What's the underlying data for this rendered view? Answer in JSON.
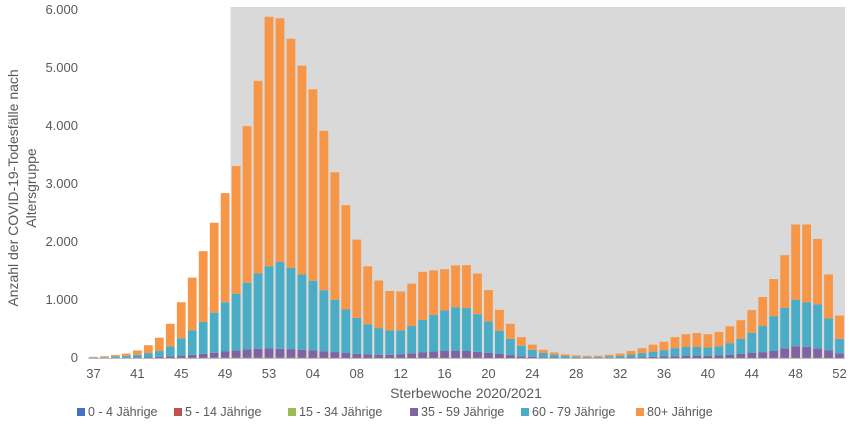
{
  "chart_data": {
    "type": "bar",
    "stacked": true,
    "xlabel": "Sterbewoche 2020/2021",
    "ylabel": "Anzahl der COVID-19-Todesfälle nach Altersgruppe",
    "ylim": [
      0,
      6000
    ],
    "yticks": [
      0,
      1000,
      2000,
      3000,
      4000,
      5000,
      6000
    ],
    "ytick_labels": [
      "0",
      "1.000",
      "2.000",
      "3.000",
      "4.000",
      "5.000",
      "6.000"
    ],
    "xtick_labels": [
      "37",
      "41",
      "45",
      "49",
      "53",
      "04",
      "08",
      "12",
      "16",
      "20",
      "24",
      "28",
      "32",
      "36",
      "40",
      "44",
      "48",
      "52"
    ],
    "grid": false,
    "legend": "bottom",
    "shaded_weeks_from": "50",
    "categories": [
      "37",
      "38",
      "39",
      "40",
      "41",
      "42",
      "43",
      "44",
      "45",
      "46",
      "47",
      "48",
      "49",
      "50",
      "51",
      "52",
      "53",
      "01",
      "02",
      "03",
      "04",
      "05",
      "06",
      "07",
      "08",
      "09",
      "10",
      "11",
      "12",
      "13",
      "14",
      "15",
      "16",
      "17",
      "18",
      "19",
      "20",
      "21",
      "22",
      "23",
      "24",
      "25",
      "26",
      "27",
      "28",
      "29",
      "30",
      "31",
      "32",
      "33",
      "34",
      "35",
      "36",
      "37",
      "38",
      "39",
      "40",
      "41",
      "42",
      "43",
      "44",
      "45",
      "46",
      "47",
      "48",
      "49",
      "50",
      "51",
      "52"
    ],
    "series": [
      {
        "name": "0 - 4 Jährige",
        "color": "#4472c4",
        "values": [
          0,
          0,
          0,
          0,
          0,
          0,
          0,
          0,
          0,
          0,
          0,
          0,
          0,
          0,
          0,
          0,
          0,
          0,
          0,
          0,
          0,
          0,
          0,
          0,
          0,
          0,
          0,
          0,
          0,
          0,
          0,
          0,
          0,
          0,
          0,
          0,
          0,
          0,
          0,
          0,
          0,
          0,
          0,
          0,
          0,
          0,
          0,
          0,
          0,
          0,
          0,
          0,
          0,
          0,
          0,
          0,
          0,
          0,
          0,
          0,
          0,
          0,
          0,
          0,
          0,
          0,
          0,
          0,
          0
        ]
      },
      {
        "name": "5 - 14 Jährige",
        "color": "#c0504d",
        "values": [
          0,
          0,
          0,
          0,
          0,
          0,
          0,
          0,
          0,
          0,
          0,
          0,
          0,
          0,
          0,
          0,
          0,
          0,
          0,
          0,
          0,
          0,
          0,
          0,
          0,
          0,
          0,
          0,
          0,
          0,
          0,
          0,
          0,
          0,
          0,
          0,
          0,
          0,
          0,
          0,
          0,
          0,
          0,
          0,
          0,
          0,
          0,
          0,
          0,
          0,
          0,
          0,
          0,
          0,
          0,
          0,
          0,
          0,
          0,
          0,
          0,
          0,
          0,
          0,
          0,
          0,
          0,
          0,
          0
        ]
      },
      {
        "name": "15 - 34 Jährige",
        "color": "#9bbb59",
        "values": [
          0,
          0,
          0,
          0,
          0,
          0,
          0,
          0,
          1,
          1,
          1,
          2,
          2,
          3,
          3,
          3,
          3,
          3,
          3,
          2,
          2,
          2,
          2,
          1,
          1,
          1,
          1,
          1,
          1,
          1,
          1,
          1,
          1,
          1,
          1,
          1,
          1,
          0,
          0,
          0,
          0,
          0,
          0,
          0,
          0,
          0,
          0,
          0,
          0,
          0,
          0,
          0,
          0,
          0,
          0,
          0,
          0,
          0,
          1,
          1,
          1,
          1,
          1,
          2,
          2,
          2,
          2,
          1,
          1
        ]
      },
      {
        "name": "35 - 59 Jährige",
        "color": "#8064a2",
        "values": [
          2,
          3,
          5,
          6,
          10,
          15,
          20,
          30,
          40,
          55,
          70,
          90,
          110,
          125,
          145,
          155,
          160,
          155,
          150,
          140,
          130,
          115,
          100,
          85,
          70,
          60,
          55,
          55,
          65,
          80,
          95,
          110,
          120,
          125,
          120,
          105,
          90,
          70,
          50,
          30,
          20,
          12,
          8,
          5,
          4,
          3,
          3,
          5,
          6,
          10,
          15,
          20,
          25,
          30,
          35,
          40,
          40,
          45,
          55,
          70,
          85,
          100,
          120,
          160,
          200,
          190,
          160,
          130,
          80
        ]
      },
      {
        "name": "60 - 79 Jährige",
        "color": "#4bacc6",
        "values": [
          8,
          12,
          20,
          30,
          45,
          70,
          100,
          170,
          300,
          420,
          550,
          690,
          850,
          980,
          1150,
          1300,
          1420,
          1500,
          1400,
          1300,
          1200,
          1050,
          900,
          750,
          620,
          520,
          460,
          420,
          410,
          470,
          560,
          630,
          700,
          750,
          740,
          650,
          540,
          400,
          280,
          180,
          120,
          75,
          50,
          30,
          20,
          15,
          15,
          20,
          30,
          50,
          70,
          90,
          110,
          140,
          155,
          150,
          140,
          155,
          200,
          260,
          350,
          450,
          600,
          700,
          800,
          770,
          760,
          550,
          250
        ]
      },
      {
        "name": "80+ Jährige",
        "color": "#f79646",
        "values": [
          10,
          15,
          25,
          40,
          75,
          135,
          230,
          390,
          620,
          910,
          1220,
          1550,
          1880,
          2200,
          2700,
          3320,
          4300,
          4200,
          3950,
          3600,
          3300,
          2750,
          2200,
          1800,
          1350,
          1000,
          820,
          680,
          670,
          730,
          830,
          770,
          710,
          720,
          740,
          700,
          540,
          360,
          260,
          150,
          90,
          55,
          37,
          27,
          20,
          20,
          20,
          30,
          40,
          60,
          85,
          120,
          145,
          190,
          220,
          240,
          230,
          250,
          290,
          320,
          390,
          500,
          640,
          910,
          1300,
          1340,
          1130,
          760,
          400
        ]
      }
    ]
  }
}
